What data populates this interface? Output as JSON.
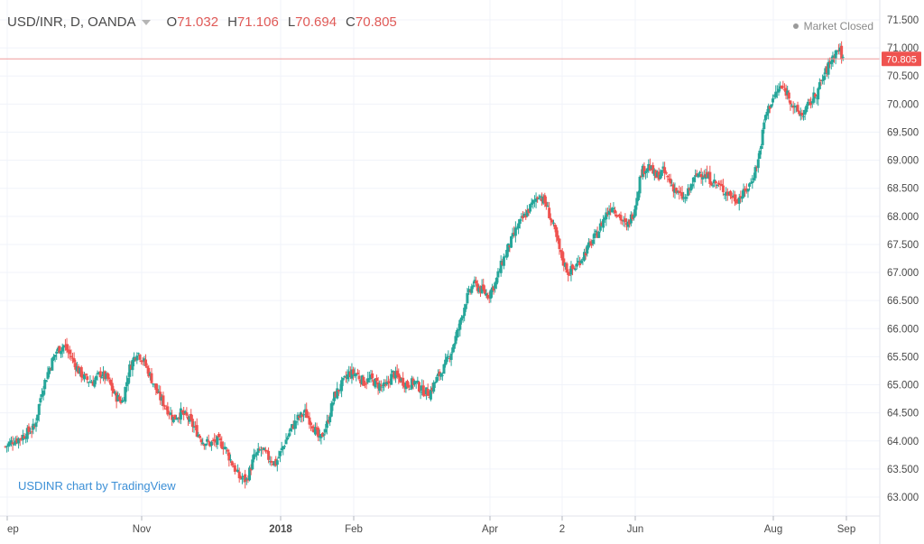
{
  "header": {
    "symbol": "USD/INR, D, OANDA",
    "ohlc": [
      {
        "label": "O",
        "value": "71.032"
      },
      {
        "label": "H",
        "value": "71.106"
      },
      {
        "label": "L",
        "value": "70.694"
      },
      {
        "label": "C",
        "value": "70.805"
      }
    ]
  },
  "status": "Market Closed",
  "watermark": "USDINR chart by TradingView",
  "colors": {
    "up": "#26a69a",
    "down": "#ef5350",
    "last_price": "#ef5350",
    "grid": "#f0f3fa",
    "text": "#4a4a4a"
  },
  "chart_data": {
    "type": "candlestick",
    "ylim": [
      62.8,
      71.5
    ],
    "y_ticks": [
      "63.000",
      "63.500",
      "64.000",
      "64.500",
      "65.000",
      "65.500",
      "66.000",
      "66.500",
      "67.000",
      "67.500",
      "68.000",
      "68.500",
      "69.000",
      "69.500",
      "70.000",
      "70.500",
      "71.000",
      "71.500"
    ],
    "x_ticks": [
      "ep",
      "Nov",
      "2018",
      "Feb",
      "Apr",
      "2",
      "Jun",
      "Aug",
      "Sep"
    ],
    "x_tick_bold": [
      false,
      false,
      true,
      false,
      false,
      false,
      false,
      false,
      false
    ],
    "last_price": "70.805",
    "close_path": [
      [
        0,
        63.9
      ],
      [
        5,
        64.0
      ],
      [
        10,
        64.05
      ],
      [
        15,
        64.15
      ],
      [
        20,
        64.25
      ],
      [
        25,
        64.9
      ],
      [
        30,
        65.3
      ],
      [
        35,
        65.6
      ],
      [
        40,
        65.7
      ],
      [
        45,
        65.5
      ],
      [
        50,
        65.25
      ],
      [
        55,
        65.1
      ],
      [
        60,
        65.05
      ],
      [
        65,
        65.2
      ],
      [
        70,
        65.1
      ],
      [
        75,
        64.8
      ],
      [
        80,
        64.7
      ],
      [
        85,
        65.3
      ],
      [
        90,
        65.6
      ],
      [
        95,
        65.4
      ],
      [
        100,
        65.1
      ],
      [
        105,
        64.8
      ],
      [
        110,
        64.6
      ],
      [
        115,
        64.4
      ],
      [
        120,
        64.5
      ],
      [
        125,
        64.4
      ],
      [
        130,
        64.2
      ],
      [
        135,
        64.0
      ],
      [
        140,
        63.95
      ],
      [
        145,
        64.0
      ],
      [
        150,
        63.9
      ],
      [
        155,
        63.6
      ],
      [
        160,
        63.35
      ],
      [
        165,
        63.3
      ],
      [
        170,
        63.7
      ],
      [
        175,
        63.85
      ],
      [
        180,
        63.7
      ],
      [
        185,
        63.6
      ],
      [
        190,
        63.9
      ],
      [
        195,
        64.2
      ],
      [
        200,
        64.4
      ],
      [
        205,
        64.5
      ],
      [
        210,
        64.3
      ],
      [
        215,
        64.0
      ],
      [
        220,
        64.3
      ],
      [
        225,
        64.8
      ],
      [
        230,
        65.0
      ],
      [
        235,
        65.2
      ],
      [
        240,
        65.2
      ],
      [
        245,
        65.05
      ],
      [
        250,
        65.1
      ],
      [
        255,
        65.0
      ],
      [
        260,
        64.95
      ],
      [
        265,
        65.2
      ],
      [
        270,
        65.1
      ],
      [
        275,
        65.0
      ],
      [
        280,
        65.05
      ],
      [
        285,
        64.9
      ],
      [
        290,
        64.85
      ],
      [
        295,
        65.1
      ],
      [
        300,
        65.3
      ],
      [
        305,
        65.6
      ],
      [
        310,
        66.0
      ],
      [
        315,
        66.5
      ],
      [
        320,
        66.8
      ],
      [
        325,
        66.7
      ],
      [
        330,
        66.6
      ],
      [
        335,
        66.8
      ],
      [
        340,
        67.2
      ],
      [
        345,
        67.5
      ],
      [
        350,
        67.8
      ],
      [
        355,
        68.0
      ],
      [
        360,
        68.2
      ],
      [
        365,
        68.4
      ],
      [
        370,
        68.2
      ],
      [
        375,
        67.8
      ],
      [
        380,
        67.3
      ],
      [
        385,
        67.0
      ],
      [
        390,
        67.1
      ],
      [
        395,
        67.3
      ],
      [
        400,
        67.5
      ],
      [
        405,
        67.7
      ],
      [
        410,
        68.0
      ],
      [
        415,
        68.2
      ],
      [
        420,
        68.0
      ],
      [
        425,
        67.8
      ],
      [
        430,
        68.1
      ],
      [
        435,
        68.8
      ],
      [
        440,
        68.9
      ],
      [
        445,
        68.7
      ],
      [
        450,
        68.8
      ],
      [
        455,
        68.6
      ],
      [
        460,
        68.4
      ],
      [
        465,
        68.3
      ],
      [
        470,
        68.6
      ],
      [
        475,
        68.8
      ],
      [
        480,
        68.7
      ],
      [
        485,
        68.6
      ],
      [
        490,
        68.5
      ],
      [
        495,
        68.4
      ],
      [
        500,
        68.3
      ],
      [
        505,
        68.4
      ],
      [
        510,
        68.6
      ],
      [
        515,
        69.0
      ],
      [
        520,
        69.8
      ],
      [
        525,
        70.1
      ],
      [
        530,
        70.3
      ],
      [
        535,
        70.2
      ],
      [
        540,
        69.9
      ],
      [
        545,
        69.8
      ],
      [
        550,
        70.0
      ],
      [
        555,
        70.2
      ],
      [
        560,
        70.5
      ],
      [
        565,
        70.8
      ],
      [
        570,
        71.0
      ],
      [
        573,
        70.805
      ]
    ]
  }
}
